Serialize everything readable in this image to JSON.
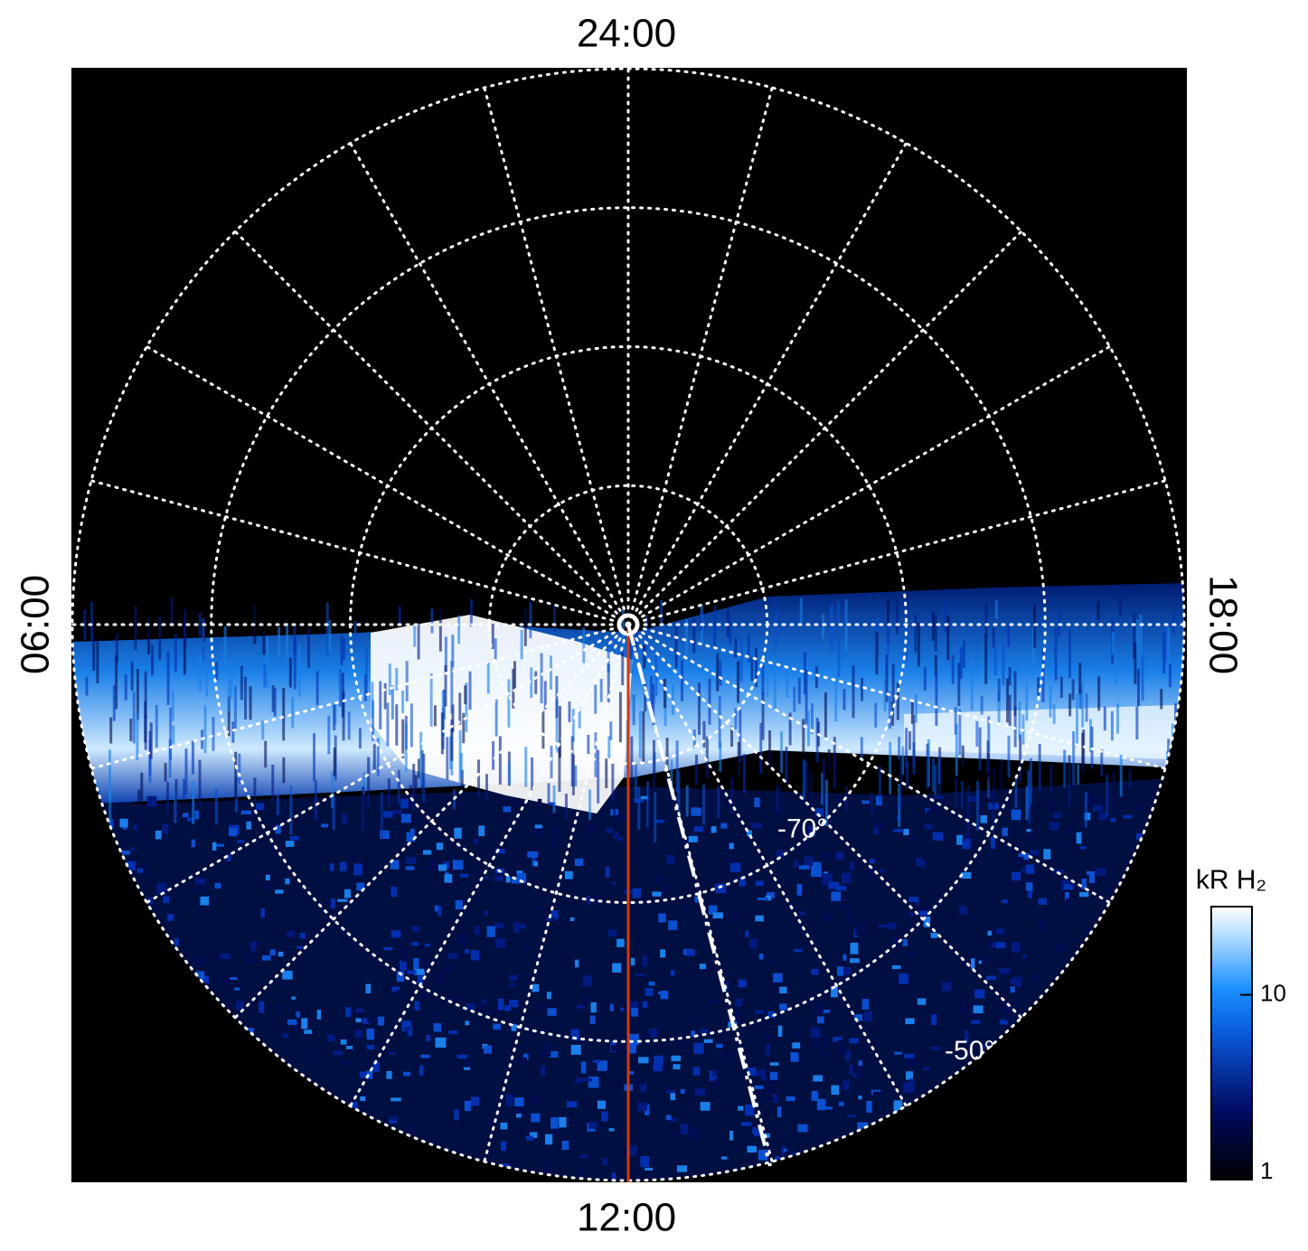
{
  "chart_data": {
    "type": "polar_map",
    "local_time_labels": {
      "top": "24:00",
      "left": "06:00",
      "bottom": "12:00",
      "right": "18:00"
    },
    "rlim": [
      -90,
      -50
    ],
    "lat_rings": [
      -80,
      {
        "value": -70,
        "label": "-70°"
      },
      -60,
      {
        "value": -50,
        "label": "-50°"
      }
    ],
    "hour_step": 1,
    "grid": true,
    "colorbar": {
      "label": "kR H₂",
      "log": true,
      "clim": [
        1,
        30
      ],
      "ticks": [
        1,
        10
      ]
    }
  }
}
